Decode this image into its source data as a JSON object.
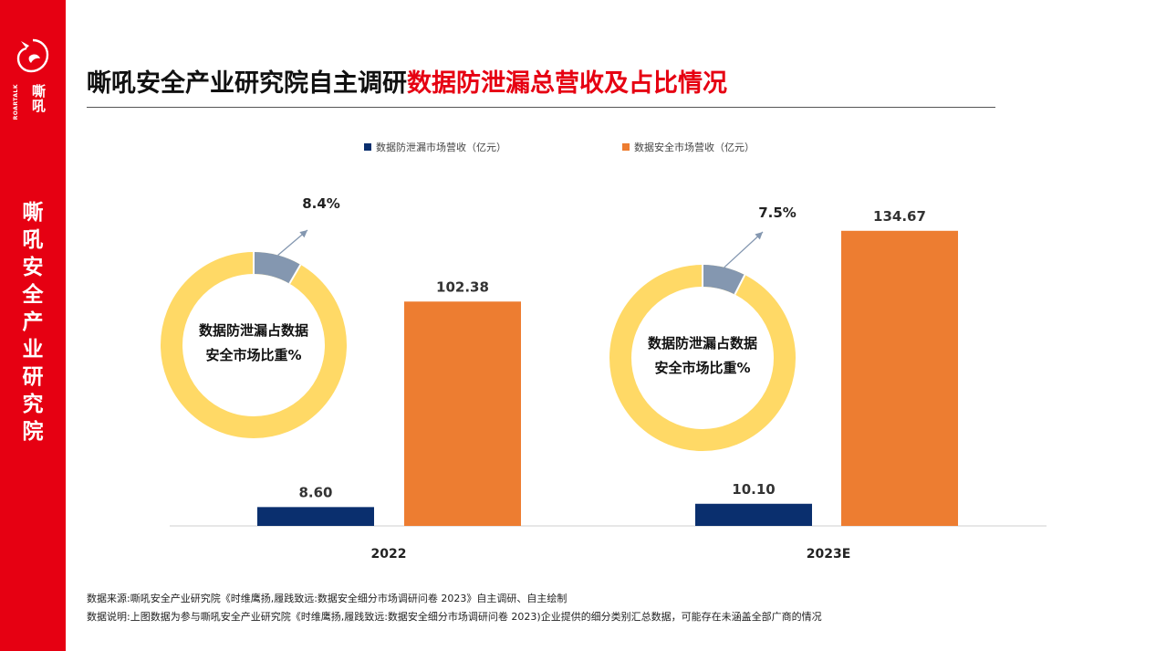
{
  "brand": {
    "logo_cn": "嘶吼",
    "logo_en": "ROARTALK",
    "sidebar_text": "嘶吼安全产业研究院"
  },
  "header": {
    "title_main": "嘶吼安全产业研究院自主调研",
    "title_highlight": "数据防泄漏总营收及占比情况"
  },
  "legend": {
    "dlp_label": "数据防泄漏市场营收（亿元）",
    "dsm_label": "数据安全市场营收（亿元）"
  },
  "footer": {
    "source": "数据来源:嘶吼安全产业研究院《时维鹰扬,履践致远:数据安全细分市场调研问卷 2023》自主调研、自主绘制",
    "note": "数据说明:上图数据为参与嘶吼安全产业研究院《时维鹰扬,履践致远:数据安全细分市场调研问卷 2023)企业提供的细分类别汇总数据，可能存在未涵盖全部广商的情况"
  },
  "colors": {
    "brand_red": "#e60012",
    "dlp": "#0a2f6e",
    "dsm": "#ed7d31",
    "donut_rest": "#ffd966",
    "donut_share": "#8497b0"
  },
  "chart_data": {
    "type": "bar",
    "categories": [
      "2022",
      "2023E"
    ],
    "series": [
      {
        "name": "数据防泄漏市场营收（亿元）",
        "values": [
          8.6,
          10.1
        ],
        "labels": [
          "8.60",
          "10.10"
        ]
      },
      {
        "name": "数据安全市场营收（亿元）",
        "values": [
          102.38,
          134.67
        ],
        "labels": [
          "102.38",
          "134.67"
        ]
      }
    ],
    "ylim": [
      0,
      150
    ],
    "grid": false,
    "legend_position": "top",
    "insets": [
      {
        "type": "pie",
        "category": "2022",
        "share": 8.4,
        "share_label": "8.4%",
        "center_text": [
          "数据防泄漏占数据",
          "安全市场比重%"
        ]
      },
      {
        "type": "pie",
        "category": "2023E",
        "share": 7.5,
        "share_label": "7.5%",
        "center_text": [
          "数据防泄漏占数据",
          "安全市场比重%"
        ]
      }
    ]
  }
}
